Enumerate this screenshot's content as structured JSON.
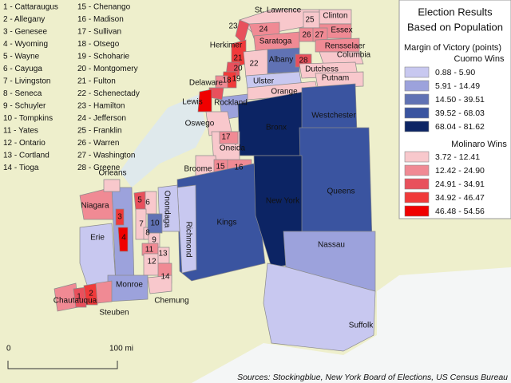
{
  "title": [
    "Election Results",
    "Based on Population"
  ],
  "legend": {
    "subtitle": "Margin of Victory (points)",
    "cuomo": {
      "label": "Cuomo Wins",
      "items": [
        {
          "label": "0.88 - 5.90",
          "color": "#c8c8f0"
        },
        {
          "label": "5.91 - 14.49",
          "color": "#9ca2dc"
        },
        {
          "label": "14.50 - 39.51",
          "color": "#6072b4"
        },
        {
          "label": "39.52 - 68.03",
          "color": "#3a54a0"
        },
        {
          "label": "68.04 - 81.62",
          "color": "#0c2464"
        }
      ]
    },
    "molinaro": {
      "label": "Molinaro Wins",
      "items": [
        {
          "label": "3.72 - 12.41",
          "color": "#f8c8cc"
        },
        {
          "label": "12.42 - 24.90",
          "color": "#f08a94"
        },
        {
          "label": "24.91 - 34.91",
          "color": "#e8505c"
        },
        {
          "label": "34.92 - 46.47",
          "color": "#f03a3a"
        },
        {
          "label": "46.48 - 54.56",
          "color": "#f00000"
        }
      ]
    }
  },
  "county_key": [
    "1 - Cattaraugus",
    "2 - Allegany",
    "3 - Genesee",
    "4 - Wyoming",
    "5 - Wayne",
    "6 - Cayuga",
    "7 - Livingston",
    "8 - Seneca",
    "9 - Schuyler",
    "10 - Tompkins",
    "11 - Yates",
    "12 - Ontario",
    "13 - Cortland",
    "14 - Tioga",
    "15 - Chenango",
    "16 - Madison",
    "17 - Sullivan",
    "18 - Otsego",
    "19 - Schoharie",
    "20 - Montgomery",
    "21 - Fulton",
    "22 - Schenectady",
    "23 - Hamilton",
    "24 - Jefferson",
    "25 - Franklin",
    "26 - Warren",
    "27 - Washington",
    "28 - Greene"
  ],
  "map": {
    "labels": [
      "St. Lawrence",
      "Clinton",
      "Essex",
      "Rensselaer",
      "Columbia",
      "Herkimer",
      "23",
      "24",
      "25",
      "26",
      "27",
      "Saratoga",
      "Albany",
      "28",
      "22",
      "21",
      "20",
      "19",
      "18",
      "Delaware",
      "Dutchess",
      "Putnam",
      "Ulster",
      "Orange",
      "Rockland",
      "Lewis",
      "Oswego",
      "Bronx",
      "Westchester",
      "17",
      "Oneida",
      "15",
      "16",
      "Broome",
      "Orleans",
      "Niagara",
      "3",
      "4",
      "5",
      "6",
      "7",
      "8",
      "9",
      "10",
      "11",
      "12",
      "13",
      "14",
      "Onondaga",
      "Richmond",
      "Kings",
      "New York",
      "Queens",
      "Nassau",
      "Erie",
      "Monroe",
      "Chemung",
      "Chautauqua",
      "1",
      "2",
      "Steuben",
      "Suffolk"
    ]
  },
  "scale": {
    "start": "0",
    "end": "100 mi"
  },
  "source": "Sources: Stockingblue, New York Board of Elections, US Census Bureau"
}
